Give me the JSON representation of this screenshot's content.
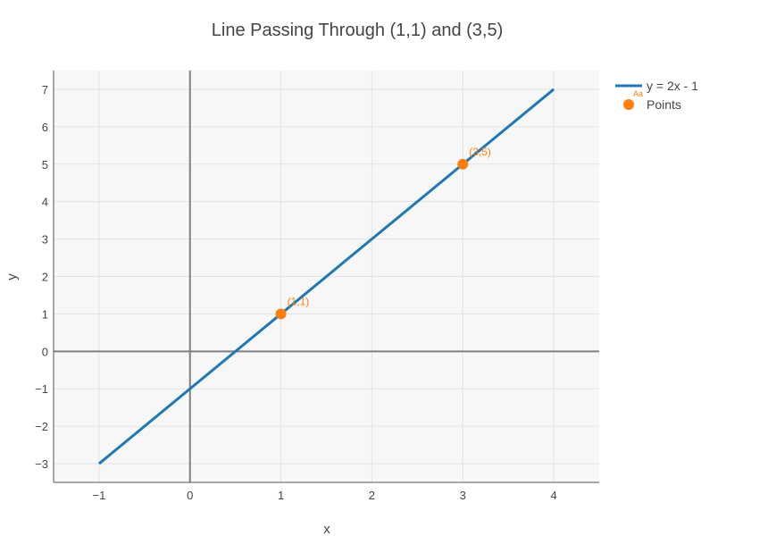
{
  "chart_data": {
    "type": "line",
    "title": "Line Passing Through (1,1) and (3,5)",
    "xlabel": "x",
    "ylabel": "y",
    "xlim": [
      -1.5,
      4.5
    ],
    "ylim": [
      -3.5,
      7.5
    ],
    "x_ticks": [
      -1,
      0,
      1,
      2,
      3,
      4
    ],
    "y_ticks": [
      -3,
      -2,
      -1,
      0,
      1,
      2,
      3,
      4,
      5,
      6,
      7
    ],
    "x_tick_labels": [
      "−1",
      "0",
      "1",
      "2",
      "3",
      "4"
    ],
    "y_tick_labels": [
      "−3",
      "−2",
      "−1",
      "0",
      "1",
      "2",
      "3",
      "4",
      "5",
      "6",
      "7"
    ],
    "grid": true,
    "zero_lines": true,
    "legend_position": "top-right",
    "series": [
      {
        "name": "y = 2x - 1",
        "mode": "lines",
        "color": "#1f77b4",
        "x": [
          -1,
          4
        ],
        "y": [
          -3,
          7
        ]
      },
      {
        "name": "Points",
        "mode": "markers+text",
        "color": "#ff7f0e",
        "x": [
          1,
          3
        ],
        "y": [
          1,
          5
        ],
        "labels": [
          "(1,1)",
          "(3,5)"
        ]
      }
    ],
    "legend_marker_text": "Aa"
  },
  "colors": {
    "plot_background": "#f7f7f7",
    "grid": "#e3e3e3",
    "zero_line": "#808080",
    "axis_line": "#555555",
    "text": "#444444"
  }
}
